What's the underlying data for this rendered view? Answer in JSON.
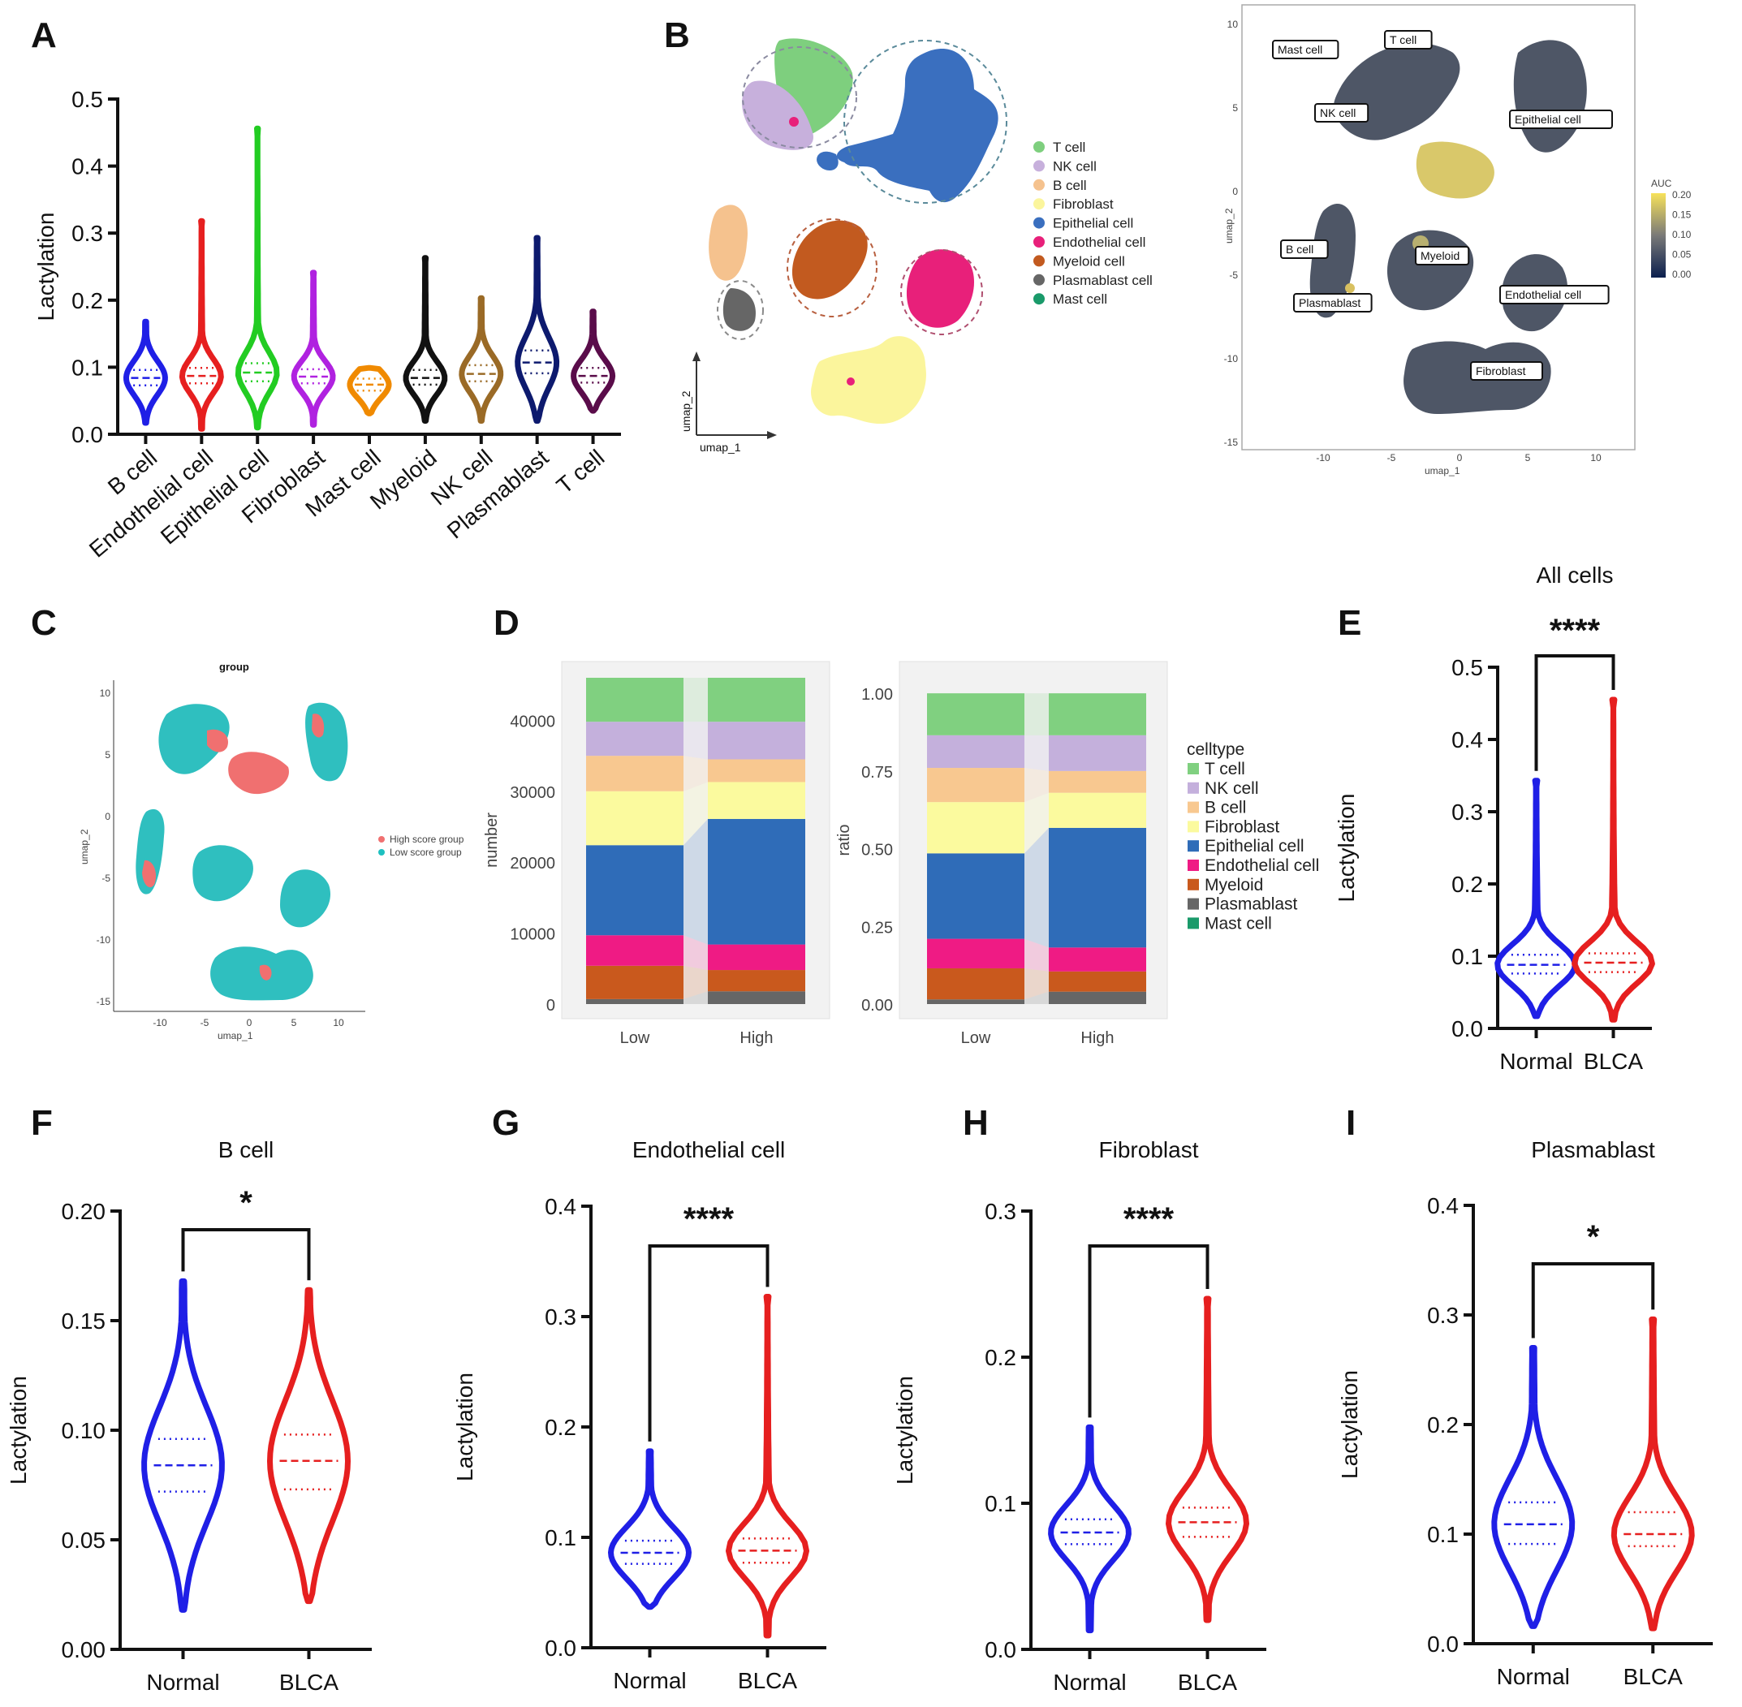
{
  "panel_labels": {
    "A": "A",
    "B": "B",
    "C": "C",
    "D": "D",
    "E": "E",
    "F": "F",
    "G": "G",
    "H": "H",
    "I": "I"
  },
  "chart_data": [
    {
      "id": "A",
      "type": "violin",
      "title": "",
      "ylabel": "Lactylation",
      "ylim": [
        0,
        0.5
      ],
      "yticks": [
        "0.0",
        "0.1",
        "0.2",
        "0.3",
        "0.4",
        "0.5"
      ],
      "categories": [
        "B cell",
        "Endothelial cell",
        "Epithelial cell",
        "Fibroblast",
        "Mast cell",
        "Myeloid",
        "NK cell",
        "Plasmablast",
        "T cell"
      ],
      "colors": [
        "#1f1fe6",
        "#e61f1f",
        "#22cc22",
        "#b022e0",
        "#f08a00",
        "#111111",
        "#9a6a26",
        "#0d1a6e",
        "#5a0c4a"
      ],
      "max": [
        0.168,
        0.318,
        0.456,
        0.241,
        0.099,
        0.263,
        0.203,
        0.293,
        0.183
      ],
      "min": [
        0.017,
        0.008,
        0.01,
        0.014,
        0.031,
        0.02,
        0.02,
        0.02,
        0.035
      ],
      "median": [
        0.084,
        0.087,
        0.092,
        0.086,
        0.074,
        0.084,
        0.09,
        0.107,
        0.087
      ],
      "q1": [
        0.073,
        0.076,
        0.079,
        0.076,
        0.065,
        0.074,
        0.079,
        0.091,
        0.077
      ],
      "q3": [
        0.096,
        0.099,
        0.106,
        0.097,
        0.083,
        0.096,
        0.103,
        0.125,
        0.099
      ]
    },
    {
      "id": "D1",
      "type": "stacked_bar",
      "ylabel": "number",
      "categories": [
        "Low",
        "High"
      ],
      "yticks": [
        "0",
        "10000",
        "20000",
        "30000",
        "40000"
      ],
      "ylim": [
        0,
        46000
      ],
      "series": [
        {
          "name": "Plasmablast",
          "values": [
            700,
            1800
          ]
        },
        {
          "name": "Myeloid",
          "values": [
            4700,
            3000
          ]
        },
        {
          "name": "Endothelial cell",
          "values": [
            4300,
            3600
          ]
        },
        {
          "name": "Epithelial cell",
          "values": [
            12700,
            17700
          ]
        },
        {
          "name": "Fibroblast",
          "values": [
            7600,
            5200
          ]
        },
        {
          "name": "B cell",
          "values": [
            5000,
            3200
          ]
        },
        {
          "name": "NK cell",
          "values": [
            4800,
            5300
          ]
        },
        {
          "name": "T cell",
          "values": [
            6200,
            6200
          ]
        }
      ]
    },
    {
      "id": "D2",
      "type": "stacked_bar",
      "ylabel": "ratio",
      "categories": [
        "Low",
        "High"
      ],
      "yticks": [
        "0.00",
        "0.25",
        "0.50",
        "0.75",
        "1.00"
      ],
      "ylim": [
        0,
        1.05
      ],
      "series": [
        {
          "name": "Plasmablast",
          "values": [
            0.015,
            0.04
          ]
        },
        {
          "name": "Myeloid",
          "values": [
            0.1,
            0.065
          ]
        },
        {
          "name": "Endothelial cell",
          "values": [
            0.095,
            0.077
          ]
        },
        {
          "name": "Epithelial cell",
          "values": [
            0.275,
            0.385
          ]
        },
        {
          "name": "Fibroblast",
          "values": [
            0.165,
            0.113
          ]
        },
        {
          "name": "B cell",
          "values": [
            0.11,
            0.07
          ]
        },
        {
          "name": "NK cell",
          "values": [
            0.105,
            0.115
          ]
        },
        {
          "name": "T cell",
          "values": [
            0.135,
            0.135
          ]
        }
      ]
    },
    {
      "id": "E",
      "type": "violin",
      "title": "All cells",
      "ylabel": "Lactylation",
      "ylim": [
        0,
        0.5
      ],
      "yticks": [
        "0.0",
        "0.1",
        "0.2",
        "0.3",
        "0.4",
        "0.5"
      ],
      "categories": [
        "Normal",
        "BLCA"
      ],
      "significance": "****",
      "colors": [
        "#1f1fe6",
        "#e61f1f"
      ],
      "max": [
        0.343,
        0.455
      ],
      "min": [
        0.017,
        0.012
      ],
      "median": [
        0.088,
        0.091
      ],
      "q1": [
        0.076,
        0.078
      ],
      "q3": [
        0.102,
        0.104
      ]
    },
    {
      "id": "F",
      "type": "violin",
      "title": "B cell",
      "ylabel": "Lactylation",
      "ylim": [
        0,
        0.2
      ],
      "yticks": [
        "0.00",
        "0.05",
        "0.10",
        "0.15",
        "0.20"
      ],
      "categories": [
        "Normal",
        "BLCA"
      ],
      "significance": "*",
      "colors": [
        "#1f1fe6",
        "#e61f1f"
      ],
      "max": [
        0.168,
        0.164
      ],
      "min": [
        0.018,
        0.022
      ],
      "median": [
        0.084,
        0.086
      ],
      "q1": [
        0.072,
        0.073
      ],
      "q3": [
        0.096,
        0.098
      ]
    },
    {
      "id": "G",
      "type": "violin",
      "title": "Endothelial cell",
      "ylabel": "Lactylation",
      "ylim": [
        0,
        0.4
      ],
      "yticks": [
        "0.0",
        "0.1",
        "0.2",
        "0.3",
        "0.4"
      ],
      "categories": [
        "Normal",
        "BLCA"
      ],
      "significance": "****",
      "colors": [
        "#1f1fe6",
        "#e61f1f"
      ],
      "max": [
        0.178,
        0.318
      ],
      "min": [
        0.037,
        0.011
      ],
      "median": [
        0.086,
        0.088
      ],
      "q1": [
        0.076,
        0.077
      ],
      "q3": [
        0.097,
        0.099
      ]
    },
    {
      "id": "H",
      "type": "violin",
      "title": "Fibroblast",
      "ylabel": "Lactylation",
      "ylim": [
        0,
        0.3
      ],
      "yticks": [
        "0.0",
        "0.1",
        "0.2",
        "0.3"
      ],
      "categories": [
        "Normal",
        "BLCA"
      ],
      "significance": "****",
      "colors": [
        "#1f1fe6",
        "#e61f1f"
      ],
      "max": [
        0.152,
        0.24
      ],
      "min": [
        0.013,
        0.02
      ],
      "median": [
        0.08,
        0.087
      ],
      "q1": [
        0.072,
        0.077
      ],
      "q3": [
        0.089,
        0.097
      ]
    },
    {
      "id": "I",
      "type": "violin",
      "title": "Plasmablast",
      "ylabel": "Lactylation",
      "ylim": [
        0,
        0.4
      ],
      "yticks": [
        "0.0",
        "0.1",
        "0.2",
        "0.3",
        "0.4"
      ],
      "categories": [
        "Normal",
        "BLCA"
      ],
      "significance": "*",
      "colors": [
        "#1f1fe6",
        "#e61f1f"
      ],
      "max": [
        0.27,
        0.296
      ],
      "min": [
        0.016,
        0.014
      ],
      "median": [
        0.109,
        0.1
      ],
      "q1": [
        0.091,
        0.089
      ],
      "q3": [
        0.129,
        0.12
      ]
    }
  ],
  "panelB": {
    "legend": [
      "T cell",
      "NK cell",
      "B cell",
      "Fibroblast",
      "Epithelial cell",
      "Endothelial cell",
      "Myeloid cell",
      "Plasmablast cell",
      "Mast cell"
    ],
    "legend_colors": [
      "#7ecf7e",
      "#c7b0dc",
      "#f5c28e",
      "#fbf59c",
      "#3a6fbf",
      "#e8207a",
      "#c25a1f",
      "#666666",
      "#1a9a6a"
    ],
    "axis_x": "umap_1",
    "axis_y": "umap_2",
    "auc_axis_x": "umap_1",
    "auc_axis_y": "umap_2",
    "auc_legend_title": "AUC",
    "auc_legend_ticks": [
      "0.20",
      "0.15",
      "0.10",
      "0.05",
      "0.00"
    ],
    "auc_xticks": [
      "-10",
      "-5",
      "0",
      "5",
      "10"
    ],
    "auc_yticks": [
      "10",
      "5",
      "0",
      "-5",
      "-10",
      "-15"
    ],
    "auc_labels": [
      "Mast cell",
      "T cell",
      "NK cell",
      "Epithelial cell",
      "B cell",
      "Myeloid",
      "Plasmablast",
      "Endothelial cell",
      "Fibroblast"
    ]
  },
  "panelC": {
    "title": "group",
    "axis_x": "umap_1",
    "axis_y": "umap_2",
    "xticks": [
      "-10",
      "-5",
      "0",
      "5",
      "10"
    ],
    "yticks": [
      "10",
      "5",
      "0",
      "-5",
      "-10",
      "-15"
    ],
    "legend": [
      "High score group",
      "Low score group"
    ],
    "legend_colors": [
      "#f07070",
      "#1ec0c0"
    ]
  },
  "panelD": {
    "legend_title": "celltype",
    "legend": [
      "T cell",
      "NK cell",
      "B cell",
      "Fibroblast",
      "Epithelial cell",
      "Endothelial cell",
      "Myeloid",
      "Plasmablast",
      "Mast cell"
    ],
    "colors": {
      "T cell": "#80d080",
      "NK cell": "#c4b0dc",
      "B cell": "#f8c890",
      "Fibroblast": "#fbfa9e",
      "Epithelial cell": "#2f6cb8",
      "Endothelial cell": "#ef1b84",
      "Myeloid": "#c9591d",
      "Plasmablast": "#666666",
      "Mast cell": "#1a9a6a"
    }
  }
}
